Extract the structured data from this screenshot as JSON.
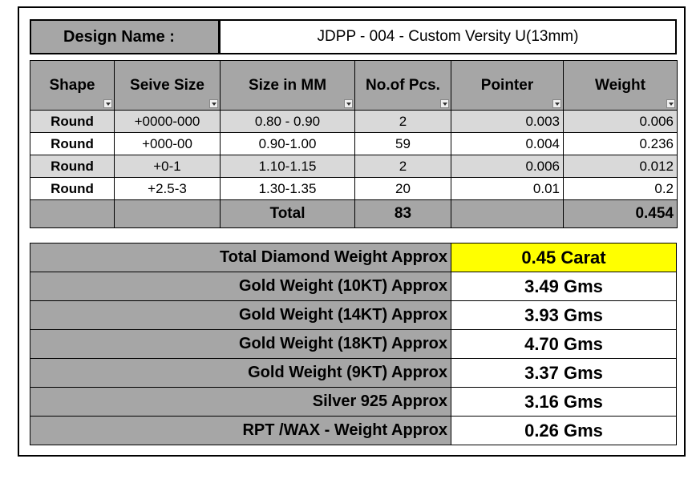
{
  "header": {
    "label": "Design Name :",
    "value": "JDPP - 004 - Custom Versity U(13mm)"
  },
  "table": {
    "columns": [
      "Shape",
      "Seive Size",
      "Size in MM",
      "No.of Pcs.",
      "Pointer",
      "Weight"
    ],
    "rows": [
      [
        "Round",
        "+0000-000",
        "0.80 - 0.90",
        "2",
        "0.003",
        "0.006"
      ],
      [
        "Round",
        "+000-00",
        "0.90-1.00",
        "59",
        "0.004",
        "0.236"
      ],
      [
        "Round",
        "+0-1",
        "1.10-1.15",
        "2",
        "0.006",
        "0.012"
      ],
      [
        "Round",
        "+2.5-3",
        "1.30-1.35",
        "20",
        "0.01",
        "0.2"
      ]
    ],
    "total": {
      "label": "Total",
      "pieces": "83",
      "weight": "0.454"
    }
  },
  "summary": [
    {
      "label": "Total Diamond Weight Approx",
      "value": "0.45 Carat"
    },
    {
      "label": "Gold Weight (10KT) Approx",
      "value": "3.49 Gms"
    },
    {
      "label": "Gold Weight (14KT) Approx",
      "value": "3.93 Gms"
    },
    {
      "label": "Gold Weight (18KT) Approx",
      "value": "4.70 Gms"
    },
    {
      "label": "Gold Weight (9KT) Approx",
      "value": "3.37 Gms"
    },
    {
      "label": "Silver 925 Approx",
      "value": "3.16 Gms"
    },
    {
      "label": "RPT /WAX - Weight Approx",
      "value": "0.26 Gms"
    }
  ]
}
